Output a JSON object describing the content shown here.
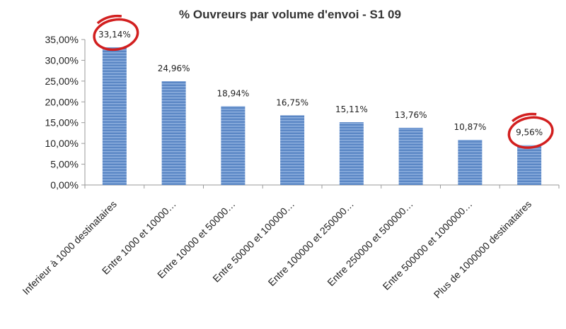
{
  "chart_data": {
    "type": "bar",
    "title": "% Ouvreurs par volume d'envoi - S1 09",
    "xlabel": "",
    "ylabel": "",
    "ylim": [
      0,
      35
    ],
    "y_ticks": [
      "0,00%",
      "5,00%",
      "10,00%",
      "15,00%",
      "20,00%",
      "25,00%",
      "30,00%",
      "35,00%"
    ],
    "categories": [
      "Inferieur à 1000 destinataires",
      "Entre 1000 et 10000…",
      "Entre 10000 et 50000…",
      "Entre 50000 et 100000…",
      "Entre 100000 et 250000…",
      "Entre 250000 et 500000…",
      "Entre 500000 et 1000000…",
      "Plus de 1000000 destinataires"
    ],
    "values": [
      33.14,
      24.96,
      18.94,
      16.75,
      15.11,
      13.76,
      10.87,
      9.56
    ],
    "data_labels": [
      "33,14%",
      "24,96%",
      "18,94%",
      "16,75%",
      "15,11%",
      "13,76%",
      "10,87%",
      "9,56%"
    ],
    "highlighted_indices": [
      0,
      7
    ],
    "grid": false,
    "legend": "none",
    "colors": {
      "bar": "#5b87c5",
      "bar_stripe": "#8fb0df",
      "highlight": "#d21f1f",
      "axis": "#9a9a9a",
      "text": "#222222"
    }
  }
}
